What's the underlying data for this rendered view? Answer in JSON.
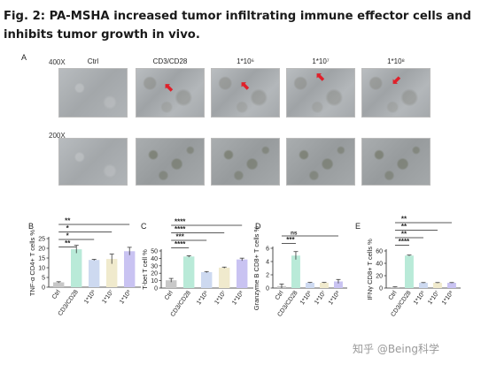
{
  "figure": {
    "title": "Fig. 2: PA-MSHA increased tumor infiltrating immune effector cells and inhibits tumor growth in vivo.",
    "panel_a": {
      "letter": "A",
      "magnifications": [
        "400X",
        "200X"
      ],
      "columns": [
        "Ctrl",
        "CD3/CD28",
        "1*10⁶",
        "1*10⁷",
        "1*10⁸"
      ]
    },
    "watermark": "知乎 @Being科学",
    "colors": {
      "ctrl": "#c8c8c8",
      "cd3": "#b9ead8",
      "e6": "#cdd9f0",
      "e7": "#f0eacd",
      "e8": "#c9c3f2",
      "error": "#222222",
      "marker_arrow": "#e0202a"
    }
  },
  "chart_data": [
    {
      "letter": "B",
      "type": "bar",
      "ylabel": "TNF-α CD4+ T cells %",
      "categories": [
        "Ctrl",
        "CD3/CD28",
        "1*10⁶",
        "1*10⁷",
        "1*10⁸"
      ],
      "values": [
        2.5,
        19.5,
        14,
        14.5,
        18.5
      ],
      "errors": [
        0.3,
        2.0,
        0.3,
        2.5,
        2.0
      ],
      "ylim": [
        0,
        25
      ],
      "yticks": [
        0,
        5,
        10,
        15,
        20,
        25
      ],
      "significance": [
        "**",
        "*",
        "*",
        "**"
      ]
    },
    {
      "letter": "C",
      "type": "bar",
      "ylabel": "T-bet T cell %",
      "categories": [
        "Ctrl",
        "CD3/CD28",
        "1*10⁶",
        "1*10⁷",
        "1*10⁸"
      ],
      "values": [
        10.5,
        42.5,
        21.5,
        27.5,
        38.5
      ],
      "errors": [
        2.5,
        1.0,
        0.8,
        0.8,
        1.8
      ],
      "ylim": [
        0,
        50
      ],
      "yticks": [
        0,
        10,
        20,
        30,
        40,
        50
      ],
      "significance": [
        "****",
        "***",
        "****",
        "****"
      ]
    },
    {
      "letter": "D",
      "type": "bar",
      "ylabel": "Granzyme B CD8+ T cells %",
      "categories": [
        "Ctrl",
        "CD3/CD28",
        "1*10⁶",
        "1*10⁷",
        "1*10⁸"
      ],
      "values": [
        0.3,
        4.9,
        0.8,
        0.8,
        1.0
      ],
      "errors": [
        0.3,
        0.6,
        0.05,
        0.05,
        0.3
      ],
      "ylim": [
        0,
        6
      ],
      "yticks": [
        0,
        2,
        4,
        6
      ],
      "significance": [
        "***",
        "ns"
      ]
    },
    {
      "letter": "E",
      "type": "bar",
      "ylabel": "IFNγ CD8+ T cells %",
      "categories": [
        "Ctrl",
        "CD3/CD28",
        "1*10⁶",
        "1*10⁷",
        "1*10⁸"
      ],
      "values": [
        1.5,
        52.5,
        8.5,
        8.5,
        8.5
      ],
      "errors": [
        0.5,
        0.8,
        0.4,
        0.4,
        0.4
      ],
      "ylim": [
        0,
        60
      ],
      "yticks": [
        0,
        20,
        40,
        60
      ],
      "significance": [
        "****",
        "**",
        "**",
        "**"
      ]
    }
  ]
}
